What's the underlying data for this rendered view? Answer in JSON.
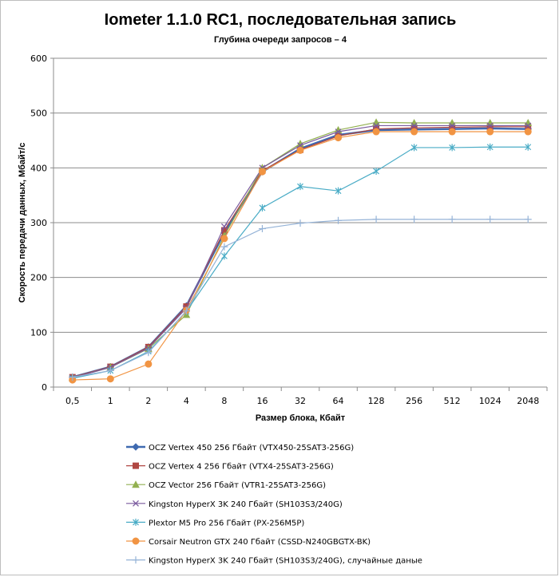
{
  "chart_data": {
    "type": "line",
    "title": "Iometer 1.1.0 RC1, последовательная запись",
    "subtitle": "Глубина очереди запросов – 4",
    "xlabel": "Размер блока, Кбайт",
    "ylabel": "Скорость передачи данных, Мбайт/с",
    "categories": [
      "0,5",
      "1",
      "2",
      "4",
      "8",
      "16",
      "32",
      "64",
      "128",
      "256",
      "512",
      "1024",
      "2048"
    ],
    "ylim": [
      0,
      600
    ],
    "yticks": [
      "0",
      "100",
      "200",
      "300",
      "400",
      "500",
      "600"
    ],
    "grid": true,
    "legend_position": "bottom",
    "series": [
      {
        "name": "OCZ Vertex  450 256 Гбайт (VTX450-25SAT3-256G)",
        "color": "#3f6ab0",
        "marker": "diamond",
        "values": [
          18,
          37,
          73,
          148,
          282,
          393,
          435,
          460,
          469,
          470,
          471,
          472,
          471
        ]
      },
      {
        "name": "OCZ Vertex  4 256 Гбайт (VTX4-25SAT3-256G)",
        "color": "#b04742",
        "marker": "square",
        "values": [
          18,
          37,
          73,
          147,
          286,
          395,
          433,
          458,
          471,
          473,
          474,
          475,
          475
        ]
      },
      {
        "name": "OCZ Vector  256 Гбайт (VTR1-25SAT3-256G)",
        "color": "#92b050",
        "marker": "triangle",
        "values": [
          17,
          36,
          70,
          132,
          276,
          400,
          444,
          469,
          483,
          482,
          482,
          482,
          482
        ]
      },
      {
        "name": "Kingston HyperX  3K 240 Гбайт (SH103S3/240G)",
        "color": "#7a5a9e",
        "marker": "x",
        "values": [
          17,
          36,
          71,
          144,
          293,
          400,
          441,
          466,
          477,
          477,
          477,
          477,
          477
        ]
      },
      {
        "name": "Plextor M5 Pro 256 Гбайт (PX-256M5P)",
        "color": "#4aacc6",
        "marker": "star",
        "values": [
          16,
          30,
          65,
          138,
          239,
          327,
          366,
          358,
          394,
          437,
          437,
          438,
          438
        ]
      },
      {
        "name": "Corsair Neutron GTX 240 Гбайт (CSSD-N240GBGTX-BK)",
        "color": "#f19443",
        "marker": "circle",
        "values": [
          13,
          15,
          42,
          140,
          271,
          393,
          432,
          455,
          466,
          466,
          466,
          466,
          466
        ]
      },
      {
        "name": "Kingston HyperX  3K 240 Гбайт (SH103S3/240G), случайные даные",
        "color": "#95b3d7",
        "marker": "plus",
        "values": [
          18,
          30,
          63,
          139,
          256,
          289,
          299,
          304,
          306,
          306,
          306,
          306,
          306
        ]
      }
    ]
  }
}
